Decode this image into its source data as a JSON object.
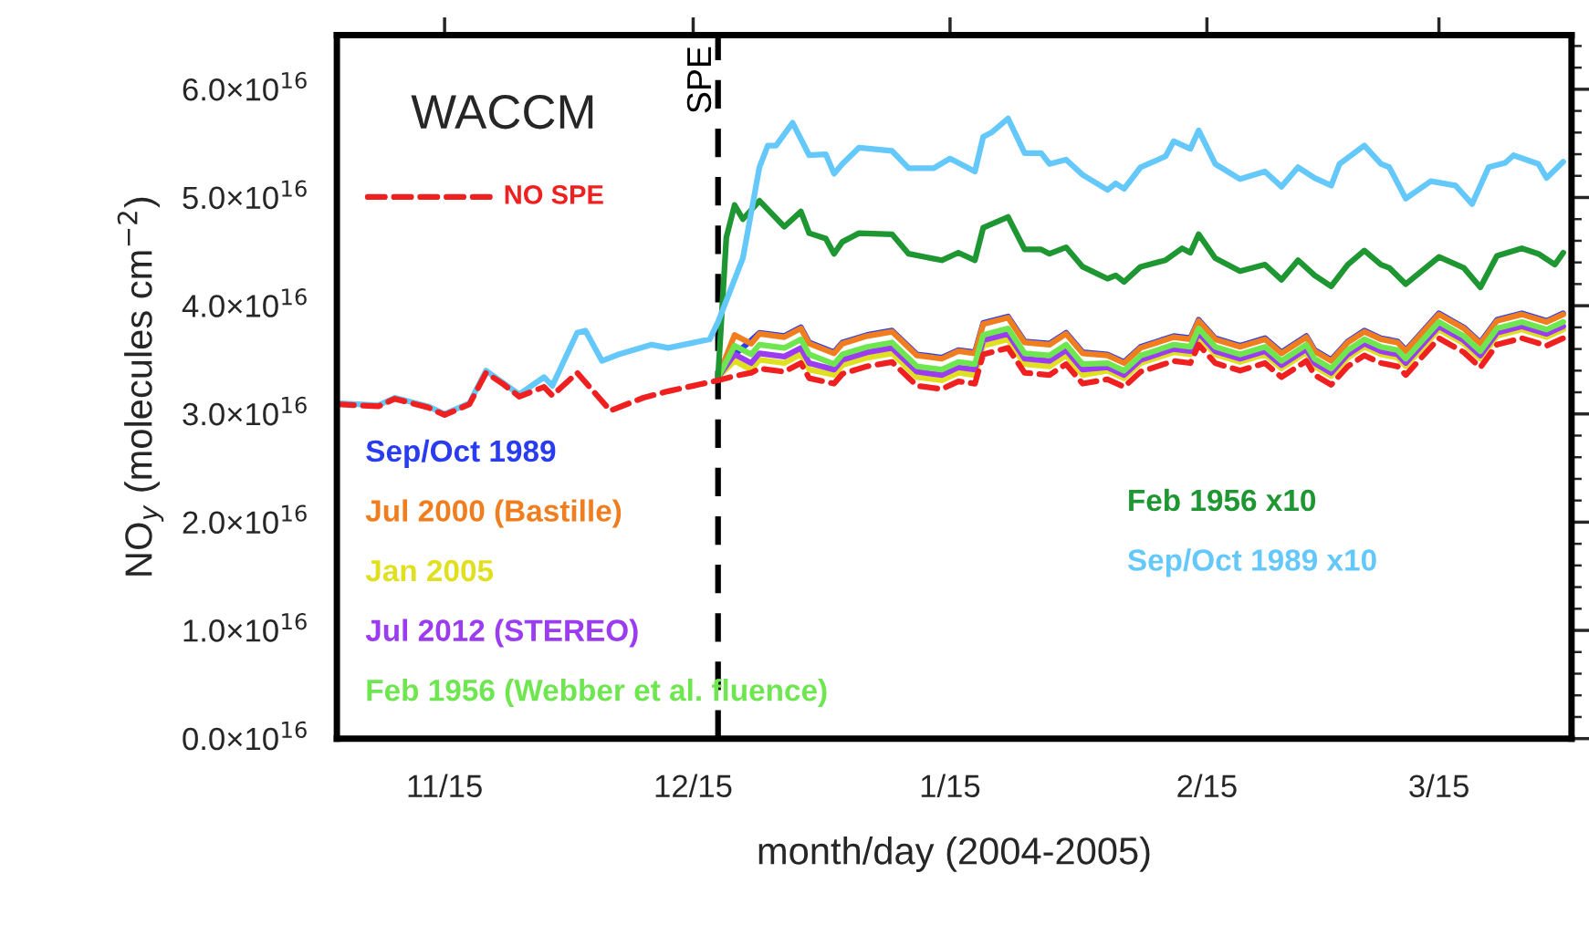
{
  "chart_data": {
    "type": "line",
    "xlabel": "month/day (2004-2005)",
    "ylabel": "NO$_{y}$ (molecules cm$^{−2}$)",
    "annotations": [
      "WACCM"
    ],
    "xlim": [
      "2004-11-02",
      "2005-03-31"
    ],
    "xticks": [
      {
        "value": "2004-11-15",
        "label": "11/15"
      },
      {
        "value": "2004-12-15",
        "label": "12/15"
      },
      {
        "value": "2005-01-15",
        "label": "1/15"
      },
      {
        "value": "2005-02-15",
        "label": "2/15"
      },
      {
        "value": "2005-03-15",
        "label": "3/15"
      }
    ],
    "ylim": [
      0,
      6.5e+16
    ],
    "yticks": [
      {
        "value": 0,
        "label": "0.0×10$^{16}$"
      },
      {
        "value": 1e+16,
        "label": "1.0×10$^{16}$"
      },
      {
        "value": 2e+16,
        "label": "2.0×10$^{16}$"
      },
      {
        "value": 3e+16,
        "label": "3.0×10$^{16}$"
      },
      {
        "value": 4e+16,
        "label": "4.0×10$^{16}$"
      },
      {
        "value": 5e+16,
        "label": "5.0×10$^{16}$"
      },
      {
        "value": 6e+16,
        "label": "6.0×10$^{16}$"
      }
    ],
    "ref_lines": [
      {
        "axis": "x",
        "value": "2004-12-18",
        "label": "SPE",
        "color": "#000000",
        "line_style": "dashed"
      }
    ],
    "x": [
      "2004-11-02",
      "2004-11-07",
      "2004-11-09",
      "2004-11-13",
      "2004-11-15",
      "2004-11-18",
      "2004-11-20",
      "2004-11-22",
      "2004-11-24",
      "2004-11-27",
      "2004-11-28",
      "2004-12-01",
      "2004-12-05",
      "2004-12-09",
      "2004-12-12",
      "2004-12-18",
      "2004-12-20",
      "2004-12-22",
      "2004-12-23",
      "2004-12-26",
      "2004-12-28",
      "2004-12-29",
      "2005-01-01",
      "2005-01-02",
      "2005-01-05",
      "2005-01-08",
      "2005-01-11",
      "2005-01-14",
      "2005-01-16",
      "2005-01-18",
      "2005-01-19",
      "2005-01-22",
      "2005-01-24",
      "2005-01-27",
      "2005-01-29",
      "2005-01-31",
      "2005-02-03",
      "2005-02-05",
      "2005-02-07",
      "2005-02-11",
      "2005-02-13",
      "2005-02-14",
      "2005-02-16",
      "2005-02-19",
      "2005-02-22",
      "2005-02-24",
      "2005-02-27",
      "2005-02-28",
      "2005-03-02",
      "2005-03-04",
      "2005-03-06",
      "2005-03-08",
      "2005-03-10",
      "2005-03-11",
      "2005-03-15",
      "2005-03-18",
      "2005-03-20",
      "2005-03-22",
      "2005-03-25",
      "2005-03-28",
      "2005-03-30"
    ],
    "series": [
      {
        "name": "Sep/Oct 1989",
        "color": "#2a3cf0",
        "values": [
          null,
          null,
          null,
          null,
          null,
          null,
          null,
          null,
          null,
          null,
          null,
          null,
          null,
          null,
          null,
          3.34e+16,
          3.55e+16,
          3.68e+16,
          3.75e+16,
          3.72e+16,
          3.8e+16,
          3.66e+16,
          3.57e+16,
          3.66e+16,
          3.73e+16,
          3.77e+16,
          3.55e+16,
          3.52e+16,
          3.59e+16,
          3.57e+16,
          3.84e+16,
          3.9e+16,
          3.67e+16,
          3.65e+16,
          3.75e+16,
          3.57e+16,
          3.55e+16,
          3.48e+16,
          3.62e+16,
          3.72e+16,
          3.7e+16,
          3.87e+16,
          3.7e+16,
          3.63e+16,
          3.7e+16,
          3.57e+16,
          3.72e+16,
          3.59e+16,
          3.5e+16,
          3.67e+16,
          3.77e+16,
          3.7e+16,
          3.67e+16,
          3.59e+16,
          3.93e+16,
          3.8e+16,
          3.66e+16,
          3.87e+16,
          3.93e+16,
          3.86e+16,
          3.93e+16
        ]
      },
      {
        "name": "Jul 2000 (Bastille)",
        "color": "#f07d1e",
        "values": [
          null,
          null,
          null,
          null,
          null,
          null,
          null,
          null,
          null,
          null,
          null,
          null,
          null,
          null,
          null,
          3.34e+16,
          3.73e+16,
          3.65e+16,
          3.74e+16,
          3.71e+16,
          3.79e+16,
          3.65e+16,
          3.56e+16,
          3.65e+16,
          3.72e+16,
          3.76e+16,
          3.54e+16,
          3.51e+16,
          3.58e+16,
          3.56e+16,
          3.83e+16,
          3.89e+16,
          3.66e+16,
          3.64e+16,
          3.74e+16,
          3.56e+16,
          3.54e+16,
          3.47e+16,
          3.61e+16,
          3.71e+16,
          3.69e+16,
          3.86e+16,
          3.69e+16,
          3.62e+16,
          3.69e+16,
          3.56e+16,
          3.71e+16,
          3.58e+16,
          3.49e+16,
          3.66e+16,
          3.76e+16,
          3.69e+16,
          3.66e+16,
          3.58e+16,
          3.92e+16,
          3.79e+16,
          3.65e+16,
          3.86e+16,
          3.92e+16,
          3.85e+16,
          3.92e+16
        ]
      },
      {
        "name": "Jan 2005",
        "color": "#e0e020",
        "values": [
          null,
          null,
          null,
          null,
          null,
          null,
          null,
          null,
          null,
          null,
          null,
          null,
          null,
          null,
          null,
          3.34e+16,
          3.49e+16,
          3.41e+16,
          3.5e+16,
          3.47e+16,
          3.55e+16,
          3.41e+16,
          3.36e+16,
          3.45e+16,
          3.52e+16,
          3.56e+16,
          3.34e+16,
          3.31e+16,
          3.38e+16,
          3.36e+16,
          3.63e+16,
          3.69e+16,
          3.46e+16,
          3.44e+16,
          3.54e+16,
          3.36e+16,
          3.4e+16,
          3.33e+16,
          3.47e+16,
          3.57e+16,
          3.55e+16,
          3.72e+16,
          3.55e+16,
          3.48e+16,
          3.55e+16,
          3.42e+16,
          3.57e+16,
          3.44e+16,
          3.35e+16,
          3.52e+16,
          3.62e+16,
          3.55e+16,
          3.52e+16,
          3.44e+16,
          3.78e+16,
          3.65e+16,
          3.51e+16,
          3.72e+16,
          3.78e+16,
          3.71e+16,
          3.78e+16
        ]
      },
      {
        "name": "Jul 2012 (STEREO)",
        "color": "#9b3cf0",
        "values": [
          null,
          null,
          null,
          null,
          null,
          null,
          null,
          null,
          null,
          null,
          null,
          null,
          null,
          null,
          null,
          3.34e+16,
          3.55e+16,
          3.47e+16,
          3.56e+16,
          3.53e+16,
          3.61e+16,
          3.47e+16,
          3.41e+16,
          3.5e+16,
          3.57e+16,
          3.61e+16,
          3.39e+16,
          3.36e+16,
          3.43e+16,
          3.41e+16,
          3.68e+16,
          3.74e+16,
          3.51e+16,
          3.49e+16,
          3.59e+16,
          3.41e+16,
          3.43e+16,
          3.36e+16,
          3.5e+16,
          3.6e+16,
          3.58e+16,
          3.75e+16,
          3.58e+16,
          3.51e+16,
          3.58e+16,
          3.45e+16,
          3.6e+16,
          3.47e+16,
          3.38e+16,
          3.55e+16,
          3.65e+16,
          3.58e+16,
          3.55e+16,
          3.47e+16,
          3.81e+16,
          3.68e+16,
          3.54e+16,
          3.75e+16,
          3.81e+16,
          3.74e+16,
          3.81e+16
        ]
      },
      {
        "name": "Feb 1956 (Webber et al. fluence)",
        "color": "#6ee650",
        "values": [
          null,
          null,
          null,
          null,
          null,
          null,
          null,
          null,
          null,
          null,
          null,
          null,
          null,
          null,
          null,
          3.34e+16,
          3.63e+16,
          3.55e+16,
          3.64e+16,
          3.61e+16,
          3.69e+16,
          3.55e+16,
          3.46e+16,
          3.55e+16,
          3.62e+16,
          3.66e+16,
          3.44e+16,
          3.41e+16,
          3.48e+16,
          3.46e+16,
          3.73e+16,
          3.79e+16,
          3.56e+16,
          3.54e+16,
          3.64e+16,
          3.46e+16,
          3.47e+16,
          3.4e+16,
          3.54e+16,
          3.64e+16,
          3.62e+16,
          3.79e+16,
          3.62e+16,
          3.55e+16,
          3.62e+16,
          3.49e+16,
          3.64e+16,
          3.51e+16,
          3.42e+16,
          3.59e+16,
          3.69e+16,
          3.62e+16,
          3.59e+16,
          3.51e+16,
          3.85e+16,
          3.72e+16,
          3.58e+16,
          3.79e+16,
          3.85e+16,
          3.78e+16,
          3.85e+16
        ]
      },
      {
        "name": "Feb 1956 x10",
        "color": "#1e9632",
        "x": [
          "2004-12-18",
          "2004-12-19",
          "2004-12-20",
          "2004-12-21",
          "2004-12-23",
          "2004-12-26",
          "2004-12-28",
          "2004-12-29",
          "2004-12-31",
          "2005-01-01",
          "2005-01-02",
          "2005-01-04",
          "2005-01-08",
          "2005-01-10",
          "2005-01-14",
          "2005-01-16",
          "2005-01-18",
          "2005-01-19",
          "2005-01-22",
          "2005-01-24",
          "2005-01-26",
          "2005-01-27",
          "2005-01-29",
          "2005-01-31",
          "2005-02-03",
          "2005-02-04",
          "2005-02-05",
          "2005-02-07",
          "2005-02-10",
          "2005-02-12",
          "2005-02-13",
          "2005-02-14",
          "2005-02-16",
          "2005-02-19",
          "2005-02-22",
          "2005-02-24",
          "2005-02-26",
          "2005-02-28",
          "2005-03-02",
          "2005-03-04",
          "2005-03-06",
          "2005-03-08",
          "2005-03-09",
          "2005-03-11",
          "2005-03-15",
          "2005-03-18",
          "2005-03-20",
          "2005-03-22",
          "2005-03-25",
          "2005-03-27",
          "2005-03-29",
          "2005-03-30"
        ],
        "values": [
          3.34e+16,
          4.63e+16,
          4.93e+16,
          4.8e+16,
          4.97e+16,
          4.73e+16,
          4.87e+16,
          4.67e+16,
          4.62e+16,
          4.48e+16,
          4.59e+16,
          4.67e+16,
          4.66e+16,
          4.48e+16,
          4.42e+16,
          4.49e+16,
          4.42e+16,
          4.72e+16,
          4.82e+16,
          4.52e+16,
          4.52e+16,
          4.48e+16,
          4.54e+16,
          4.36e+16,
          4.25e+16,
          4.28e+16,
          4.22e+16,
          4.36e+16,
          4.42e+16,
          4.53e+16,
          4.49e+16,
          4.66e+16,
          4.44e+16,
          4.32e+16,
          4.38e+16,
          4.24e+16,
          4.42e+16,
          4.28e+16,
          4.18e+16,
          4.38e+16,
          4.51e+16,
          4.38e+16,
          4.35e+16,
          4.2e+16,
          4.45e+16,
          4.35e+16,
          4.17e+16,
          4.46e+16,
          4.53e+16,
          4.48e+16,
          4.38e+16,
          4.49e+16
        ]
      },
      {
        "name": "Sep/Oct 1989 x10",
        "color": "#64c8fa",
        "x": [
          "2004-11-02",
          "2004-11-07",
          "2004-11-09",
          "2004-11-13",
          "2004-11-15",
          "2004-11-18",
          "2004-11-20",
          "2004-11-22",
          "2004-11-24",
          "2004-11-27",
          "2004-11-28",
          "2004-12-01",
          "2004-12-02",
          "2004-12-04",
          "2004-12-06",
          "2004-12-10",
          "2004-12-12",
          "2004-12-17",
          "2004-12-18",
          "2004-12-21",
          "2004-12-23",
          "2004-12-24",
          "2004-12-25",
          "2004-12-27",
          "2004-12-29",
          "2004-12-31",
          "2005-01-01",
          "2005-01-02",
          "2005-01-04",
          "2005-01-08",
          "2005-01-10",
          "2005-01-13",
          "2005-01-15",
          "2005-01-18",
          "2005-01-19",
          "2005-01-20",
          "2005-01-22",
          "2005-01-24",
          "2005-01-26",
          "2005-01-27",
          "2005-01-29",
          "2005-01-31",
          "2005-02-03",
          "2005-02-04",
          "2005-02-05",
          "2005-02-07",
          "2005-02-10",
          "2005-02-11",
          "2005-02-13",
          "2005-02-14",
          "2005-02-16",
          "2005-02-19",
          "2005-02-22",
          "2005-02-24",
          "2005-02-26",
          "2005-02-28",
          "2005-03-02",
          "2005-03-03",
          "2005-03-06",
          "2005-03-08",
          "2005-03-09",
          "2005-03-11",
          "2005-03-14",
          "2005-03-17",
          "2005-03-19",
          "2005-03-21",
          "2005-03-23",
          "2005-03-24",
          "2005-03-27",
          "2005-03-28",
          "2005-03-30"
        ],
        "values": [
          3.1e+16,
          3.08e+16,
          3.15e+16,
          3.07e+16,
          3e+16,
          3.1e+16,
          3.4e+16,
          3.29e+16,
          3.18e+16,
          3.34e+16,
          3.26e+16,
          3.75e+16,
          3.77e+16,
          3.49e+16,
          3.55e+16,
          3.64e+16,
          3.61e+16,
          3.69e+16,
          3.85e+16,
          4.44e+16,
          5.28e+16,
          5.48e+16,
          5.48e+16,
          5.69e+16,
          5.39e+16,
          5.4e+16,
          5.22e+16,
          5.31e+16,
          5.46e+16,
          5.43e+16,
          5.27e+16,
          5.27e+16,
          5.36e+16,
          5.24e+16,
          5.56e+16,
          5.6e+16,
          5.73e+16,
          5.41e+16,
          5.41e+16,
          5.31e+16,
          5.35e+16,
          5.21e+16,
          5.07e+16,
          5.13e+16,
          5.08e+16,
          5.28e+16,
          5.38e+16,
          5.52e+16,
          5.45e+16,
          5.62e+16,
          5.31e+16,
          5.17e+16,
          5.24e+16,
          5.1e+16,
          5.28e+16,
          5.18e+16,
          5.11e+16,
          5.31e+16,
          5.48e+16,
          5.31e+16,
          5.28e+16,
          4.99e+16,
          5.15e+16,
          5.11e+16,
          4.94e+16,
          5.28e+16,
          5.32e+16,
          5.39e+16,
          5.31e+16,
          5.18e+16,
          5.33e+16
        ]
      },
      {
        "name": "NO SPE",
        "color": "#f02020",
        "line_style": "dashed",
        "values": [
          3.09e+16,
          3.07e+16,
          3.14e+16,
          3.06e+16,
          2.99e+16,
          3.09e+16,
          3.38e+16,
          3.28e+16,
          3.16e+16,
          3.25e+16,
          3.17e+16,
          3.38e+16,
          3.03e+16,
          3.15e+16,
          3.21e+16,
          3.31e+16,
          3.35e+16,
          3.38e+16,
          3.42e+16,
          3.39e+16,
          3.47e+16,
          3.33e+16,
          3.28e+16,
          3.37e+16,
          3.44e+16,
          3.48e+16,
          3.26e+16,
          3.23e+16,
          3.3e+16,
          3.28e+16,
          3.55e+16,
          3.61e+16,
          3.38e+16,
          3.36e+16,
          3.46e+16,
          3.28e+16,
          3.32e+16,
          3.25e+16,
          3.39e+16,
          3.49e+16,
          3.47e+16,
          3.64e+16,
          3.47e+16,
          3.4e+16,
          3.47e+16,
          3.34e+16,
          3.49e+16,
          3.36e+16,
          3.27e+16,
          3.44e+16,
          3.54e+16,
          3.47e+16,
          3.44e+16,
          3.36e+16,
          3.7e+16,
          3.57e+16,
          3.43e+16,
          3.64e+16,
          3.7e+16,
          3.63e+16,
          3.7e+16
        ]
      }
    ]
  }
}
